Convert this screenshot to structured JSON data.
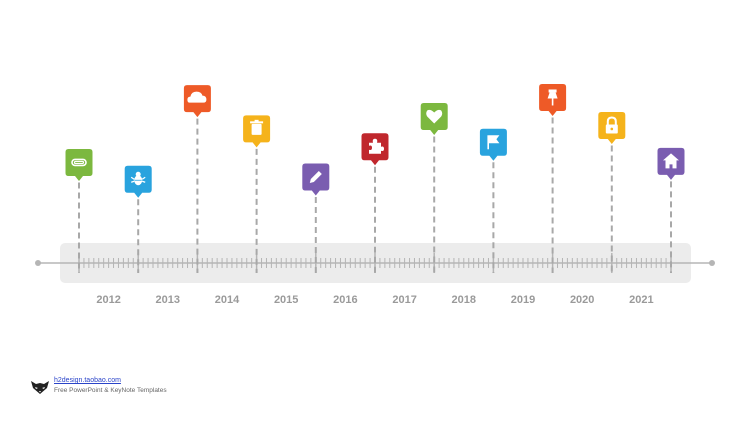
{
  "timeline": {
    "start_year": 2012,
    "end_year": 2021,
    "years": [
      "2012",
      "2013",
      "2014",
      "2015",
      "2016",
      "2017",
      "2018",
      "2019",
      "2020",
      "2021"
    ],
    "milestones": [
      {
        "icon": "paperclip-icon",
        "color": "#7cb83f",
        "year_pos": 2012.0,
        "level": 0.38
      },
      {
        "icon": "bug-icon",
        "color": "#29a3de",
        "year_pos": 2013.0,
        "level": 0.23
      },
      {
        "icon": "cloud-icon",
        "color": "#ee5a27",
        "year_pos": 2014.0,
        "level": 0.95
      },
      {
        "icon": "trash-icon",
        "color": "#f5b31b",
        "year_pos": 2015.0,
        "level": 0.68
      },
      {
        "icon": "pencil-icon",
        "color": "#7a5db0",
        "year_pos": 2016.0,
        "level": 0.25
      },
      {
        "icon": "puzzle-icon",
        "color": "#c0272d",
        "year_pos": 2017.0,
        "level": 0.52
      },
      {
        "icon": "heart-icon",
        "color": "#7cb83f",
        "year_pos": 2018.0,
        "level": 0.79
      },
      {
        "icon": "flag-icon",
        "color": "#29a3de",
        "year_pos": 2019.0,
        "level": 0.56
      },
      {
        "icon": "pushpin-icon",
        "color": "#ee5a27",
        "year_pos": 2020.0,
        "level": 0.96
      },
      {
        "icon": "lock-icon",
        "color": "#f5b31b",
        "year_pos": 2021.0,
        "level": 0.71
      },
      {
        "icon": "home-icon",
        "color": "#7a5db0",
        "year_pos": 2022.0,
        "level": 0.39
      }
    ]
  },
  "footer": {
    "link_text": "h2design.taobao.com",
    "subtitle": "Free PowerPoint & KeyNote Templates",
    "logo_icon": "fox-logo-icon"
  }
}
